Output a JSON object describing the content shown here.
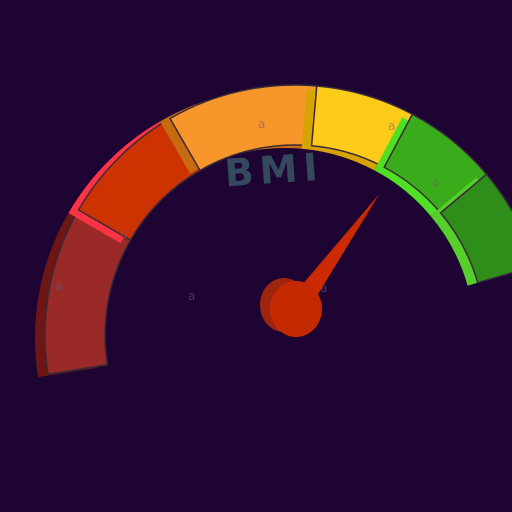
{
  "gauge": {
    "label": "BMI",
    "needle_fraction": 0.78,
    "segments": [
      {
        "id": "dark-red",
        "color": "#9a2a28",
        "edge": "#6e1614"
      },
      {
        "id": "red",
        "color": "#cc3300",
        "edge": "#ff3344"
      },
      {
        "id": "orange",
        "color": "#f7962a",
        "edge": "#c86a10"
      },
      {
        "id": "yellow",
        "color": "#fecb1a",
        "edge": "#d6a400"
      },
      {
        "id": "green",
        "color": "#3aab1a",
        "edge": "#4ee022"
      },
      {
        "id": "dark-green",
        "color": "#2f8e1a",
        "edge": "#56cf2a"
      }
    ],
    "needle_color": "#cc2a00",
    "hub_color": "#c42900",
    "hub_shadow": "#9e2410"
  },
  "watermarks": [
    "a",
    "a",
    "a",
    "a",
    "a",
    "a",
    "a"
  ]
}
